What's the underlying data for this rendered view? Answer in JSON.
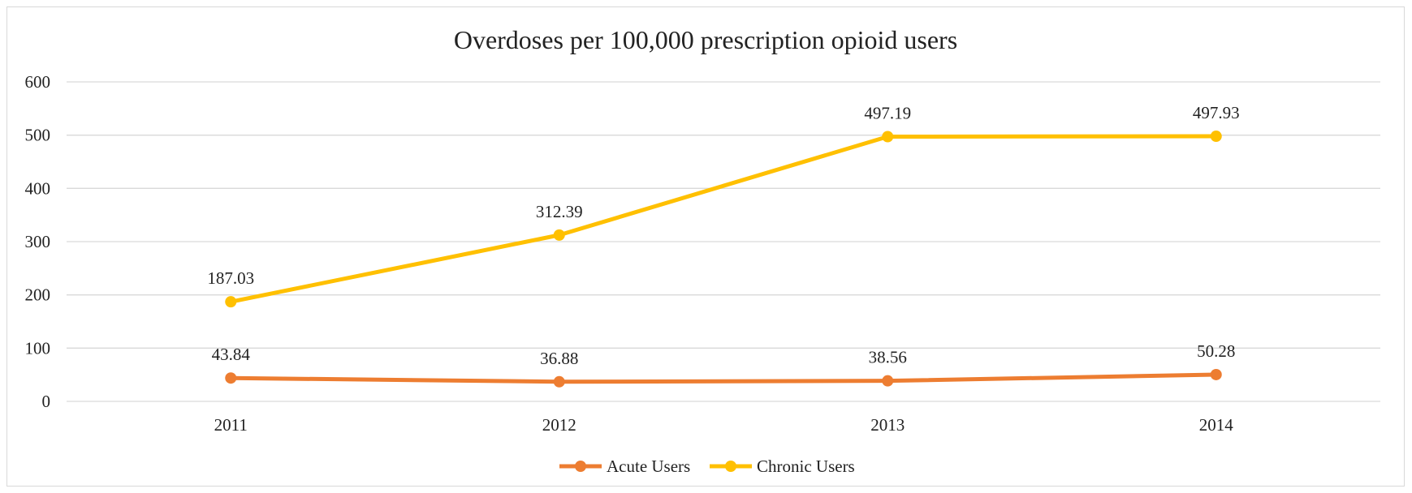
{
  "chart_data": {
    "type": "line",
    "title": "Overdoses per 100,000 prescription opioid users",
    "xlabel": "",
    "ylabel": "",
    "categories": [
      "2011",
      "2012",
      "2013",
      "2014"
    ],
    "ylim": [
      0,
      600
    ],
    "yticks": [
      0,
      100,
      200,
      300,
      400,
      500,
      600
    ],
    "grid": true,
    "legend_position": "bottom",
    "series": [
      {
        "name": "Acute Users",
        "color": "#ED7D31",
        "values": [
          43.84,
          36.88,
          38.56,
          50.28
        ],
        "labels": [
          "43.84",
          "36.88",
          "38.56",
          "50.28"
        ]
      },
      {
        "name": "Chronic Users",
        "color": "#FFC000",
        "values": [
          187.03,
          312.39,
          497.19,
          497.93
        ],
        "labels": [
          "187.03",
          "312.39",
          "497.19",
          "497.93"
        ]
      }
    ]
  }
}
